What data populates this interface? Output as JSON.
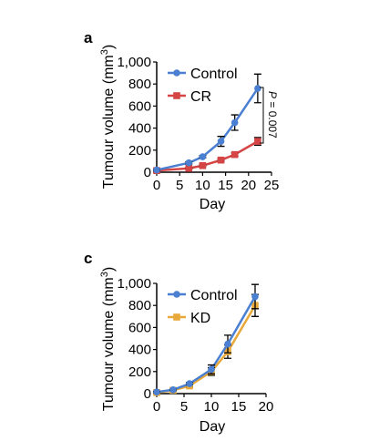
{
  "colors": {
    "control": "#4a7fd1",
    "cr": "#d64545",
    "kd": "#e8a93a",
    "axis": "#000000"
  },
  "chart_data": [
    {
      "panel": "a",
      "type": "line",
      "xlabel": "Day",
      "ylabel": "Tumour volume (mm",
      "ylabel_sup": "3",
      "ylabel_close": ")",
      "xlim": [
        0,
        25
      ],
      "ylim": [
        0,
        1000
      ],
      "xticks": [
        0,
        5,
        10,
        15,
        20,
        25
      ],
      "yticks": [
        0,
        200,
        400,
        600,
        800,
        1000
      ],
      "ytick_labels": [
        "0",
        "200",
        "400",
        "600",
        "800",
        "1,000"
      ],
      "legend": "top-left",
      "series": [
        {
          "name": "Control",
          "marker": "circle",
          "color": "#4a7fd1",
          "x": [
            0,
            7,
            10,
            14,
            17,
            22
          ],
          "y": [
            20,
            85,
            140,
            280,
            450,
            760
          ],
          "err": [
            5,
            10,
            10,
            45,
            70,
            130
          ]
        },
        {
          "name": "CR",
          "marker": "square",
          "color": "#d64545",
          "x": [
            0,
            7,
            10,
            14,
            17,
            22
          ],
          "y": [
            15,
            35,
            60,
            110,
            160,
            280
          ],
          "err": [
            5,
            5,
            8,
            10,
            15,
            35
          ]
        }
      ],
      "annotation": {
        "p_prefix": "P",
        "p_suffix": " = 0.007"
      }
    },
    {
      "panel": "c",
      "type": "line",
      "xlabel": "Day",
      "ylabel": "Tumour volume (mm",
      "ylabel_sup": "3",
      "ylabel_close": ")",
      "xlim": [
        0,
        20
      ],
      "ylim": [
        0,
        1000
      ],
      "xticks": [
        0,
        5,
        10,
        15,
        20
      ],
      "yticks": [
        0,
        200,
        400,
        600,
        800,
        1000
      ],
      "ytick_labels": [
        "0",
        "200",
        "400",
        "600",
        "800",
        "1,000"
      ],
      "legend": "top-left",
      "series": [
        {
          "name": "Control",
          "marker": "circle",
          "color": "#4a7fd1",
          "x": [
            0,
            3,
            6,
            10,
            13,
            18
          ],
          "y": [
            15,
            35,
            90,
            220,
            450,
            880
          ],
          "err": [
            5,
            5,
            10,
            40,
            80,
            110
          ]
        },
        {
          "name": "KD",
          "marker": "square",
          "color": "#e8a93a",
          "x": [
            0,
            3,
            6,
            10,
            13,
            18
          ],
          "y": [
            10,
            30,
            70,
            200,
            380,
            800
          ],
          "err": [
            5,
            5,
            10,
            35,
            60,
            100
          ]
        }
      ]
    }
  ]
}
